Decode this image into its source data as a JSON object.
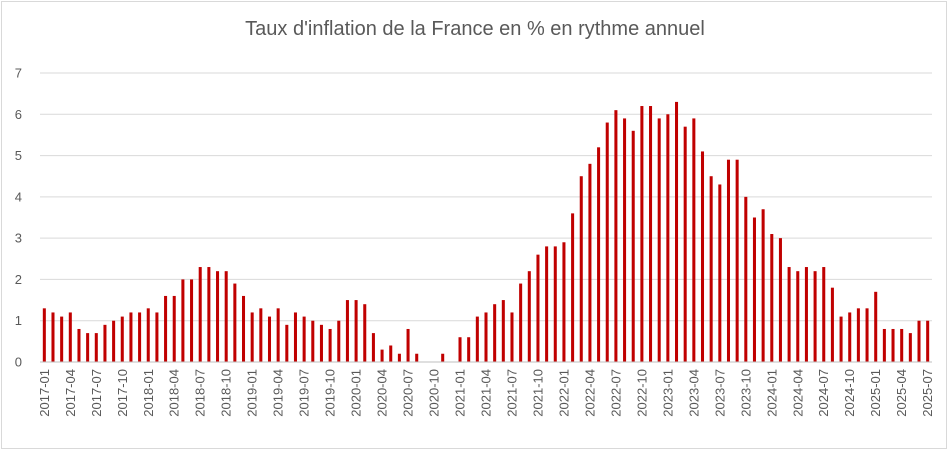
{
  "chart_data": {
    "type": "bar",
    "title": "Taux d'inflation de la France en % en rythme annuel",
    "xlabel": "",
    "ylabel": "",
    "ylim": [
      0,
      7
    ],
    "yticks": [
      0,
      1,
      2,
      3,
      4,
      5,
      6,
      7
    ],
    "grid": true,
    "bar_color": "#C00000",
    "series": [
      {
        "categories": [
          "2017-01",
          "2017-02",
          "2017-03",
          "2017-04",
          "2017-05",
          "2017-06",
          "2017-07",
          "2017-08",
          "2017-09",
          "2017-10",
          "2017-11",
          "2017-12",
          "2018-01",
          "2018-02",
          "2018-03",
          "2018-04",
          "2018-05",
          "2018-06",
          "2018-07",
          "2018-08",
          "2018-09",
          "2018-10",
          "2018-11",
          "2018-12",
          "2019-01",
          "2019-02",
          "2019-03",
          "2019-04",
          "2019-05",
          "2019-06",
          "2019-07",
          "2019-08",
          "2019-09",
          "2019-10",
          "2019-11",
          "2019-12",
          "2020-01",
          "2020-02",
          "2020-03",
          "2020-04",
          "2020-05",
          "2020-06",
          "2020-07",
          "2020-08",
          "2020-09",
          "2020-10",
          "2020-11",
          "2020-12",
          "2021-01",
          "2021-02",
          "2021-03",
          "2021-04",
          "2021-05",
          "2021-06",
          "2021-07",
          "2021-08",
          "2021-09",
          "2021-10",
          "2021-11",
          "2021-12",
          "2022-01",
          "2022-02",
          "2022-03",
          "2022-04",
          "2022-05",
          "2022-06",
          "2022-07",
          "2022-08",
          "2022-09",
          "2022-10",
          "2022-11",
          "2022-12",
          "2023-01",
          "2023-02",
          "2023-03",
          "2023-04",
          "2023-05",
          "2023-06",
          "2023-07",
          "2023-08",
          "2023-09",
          "2023-10",
          "2023-11",
          "2023-12",
          "2024-01",
          "2024-02",
          "2024-03",
          "2024-04",
          "2024-05",
          "2024-06",
          "2024-07",
          "2024-08",
          "2024-09",
          "2024-10",
          "2024-11",
          "2024-12",
          "2025-01",
          "2025-02",
          "2025-03",
          "2025-04",
          "2025-05",
          "2025-06",
          "2025-07"
        ],
        "values": [
          1.3,
          1.2,
          1.1,
          1.2,
          0.8,
          0.7,
          0.7,
          0.9,
          1.0,
          1.1,
          1.2,
          1.2,
          1.3,
          1.2,
          1.6,
          1.6,
          2.0,
          2.0,
          2.3,
          2.3,
          2.2,
          2.2,
          1.9,
          1.6,
          1.2,
          1.3,
          1.1,
          1.3,
          0.9,
          1.2,
          1.1,
          1.0,
          0.9,
          0.8,
          1.0,
          1.5,
          1.5,
          1.4,
          0.7,
          0.3,
          0.4,
          0.2,
          0.8,
          0.2,
          0.0,
          0.0,
          0.2,
          0.0,
          0.6,
          0.6,
          1.1,
          1.2,
          1.4,
          1.5,
          1.2,
          1.9,
          2.2,
          2.6,
          2.8,
          2.8,
          2.9,
          3.6,
          4.5,
          4.8,
          5.2,
          5.8,
          6.1,
          5.9,
          5.6,
          6.2,
          6.2,
          5.9,
          6.0,
          6.3,
          5.7,
          5.9,
          5.1,
          4.5,
          4.3,
          4.9,
          4.9,
          4.0,
          3.5,
          3.7,
          3.1,
          3.0,
          2.3,
          2.2,
          2.3,
          2.2,
          2.3,
          1.8,
          1.1,
          1.2,
          1.3,
          1.3,
          1.7,
          0.8,
          0.8,
          0.8,
          0.7,
          1.0,
          1.0
        ]
      }
    ],
    "xtick_labels": [
      "2017-01",
      "2017-04",
      "2017-07",
      "2017-10",
      "2018-01",
      "2018-04",
      "2018-07",
      "2018-10",
      "2019-01",
      "2019-04",
      "2019-07",
      "2019-10",
      "2020-01",
      "2020-04",
      "2020-07",
      "2020-10",
      "2021-01",
      "2021-04",
      "2021-07",
      "2021-10",
      "2022-01",
      "2022-04",
      "2022-07",
      "2022-10",
      "2023-01",
      "2023-04",
      "2023-07",
      "2023-10",
      "2024-01",
      "2024-04",
      "2024-07",
      "2024-10",
      "2025-01",
      "2025-04",
      "2025-07"
    ]
  }
}
